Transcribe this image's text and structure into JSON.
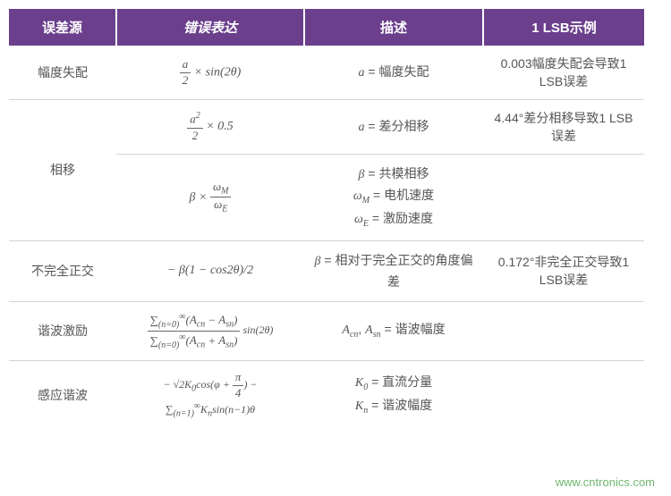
{
  "table": {
    "header_bg": "#6b3f8c",
    "header_fg": "#ffffff",
    "border_color": "#d4d4d4",
    "text_color": "#555555",
    "headers": {
      "source": "误差源",
      "expression": "错误表达",
      "description": "描述",
      "example": "1 LSB示例"
    },
    "rows": [
      {
        "source": "幅度失配",
        "expr_html": "<span class='frac'><span class='num'><i>a</i></span><span class='den'>2</span></span> × sin(<i>2θ</i>)",
        "desc_lines": [
          "<span class='ital'>a</span> = 幅度失配"
        ],
        "example": "0.003幅度失配会导致1 LSB误差",
        "rowspan_source": 1
      },
      {
        "source": "相移",
        "expr_html": "<span class='frac'><span class='num'><i>a</i><span class='sup'>2</span></span><span class='den'>2</span></span> × 0.5",
        "desc_lines": [
          "<span class='ital'>a</span> = 差分相移"
        ],
        "example": "4.44°差分相移导致1 LSB误差",
        "rowspan_source": 2
      },
      {
        "source": "",
        "expr_html": "<i>β</i> × <span class='frac'><span class='num'><i>ω<span class='sub'>M</span></i></span><span class='den'><i>ω<span class='sub'>E</span></i></span></span>",
        "desc_lines": [
          "<span class='ital'>β</span> = 共模相移",
          "<span class='ital'>ω<span class='sub'>M</span></span> = 电机速度",
          "<span class='ital'>ω<span class='sub'>E</span></span> = 激励速度"
        ],
        "example": "",
        "skip_source": true
      },
      {
        "source": "不完全正交",
        "expr_html": "− <i>β</i>(1 − <i>cos2θ</i>)/2",
        "desc_lines": [
          "<span class='ital'>β</span> = 相对于完全正交的角度偏差"
        ],
        "example": "0.172°非完全正交导致1 LSB误差",
        "rowspan_source": 1
      },
      {
        "source": "谐波激励",
        "expr_html": "<span class='sum-expr'><span class='frac'><span class='num'>∑<span class='sub'>(n=0)</span><span class='sup'>∞</span>(<i>A<span class='sub'>cn</span></i> − <i>A<span class='sub'>sn</span></i>)</span><span class='den'>∑<span class='sub'>(n=0)</span><span class='sup'>∞</span>(<i>A<span class='sub'>cn</span></i> + <i>A<span class='sub'>sn</span></i>)</span></span> sin(2θ)</span>",
        "desc_lines": [
          "<span class='ital'>A<span class='sub'>cn</span></span>, <span class='ital'>A<span class='sub'>sn</span></span> = 谐波幅度"
        ],
        "example": "",
        "rowspan_source": 1
      },
      {
        "source": "感应谐波",
        "expr_html": "<span class='sum-expr'>− √2<i>K</i><span class='sub'>0</span>cos(<i>φ</i> + <span class='frac'><span class='num'>π</span><span class='den'>4</span></span>) − ∑<span class='sub'>(n=1)</span><span class='sup'>∞</span><i>K<span class='sub'>n</span></i>sin(<i>n</i>−1)<i>θ</i></span>",
        "desc_lines": [
          "<span class='ital'>K</span><span class='sub ital'>0</span> = 直流分量",
          "<span class='ital'>K<span class='sub'>n</span></span> = 谐波幅度"
        ],
        "example": "",
        "rowspan_source": 1
      }
    ]
  },
  "watermark": "www.cntronics.com"
}
